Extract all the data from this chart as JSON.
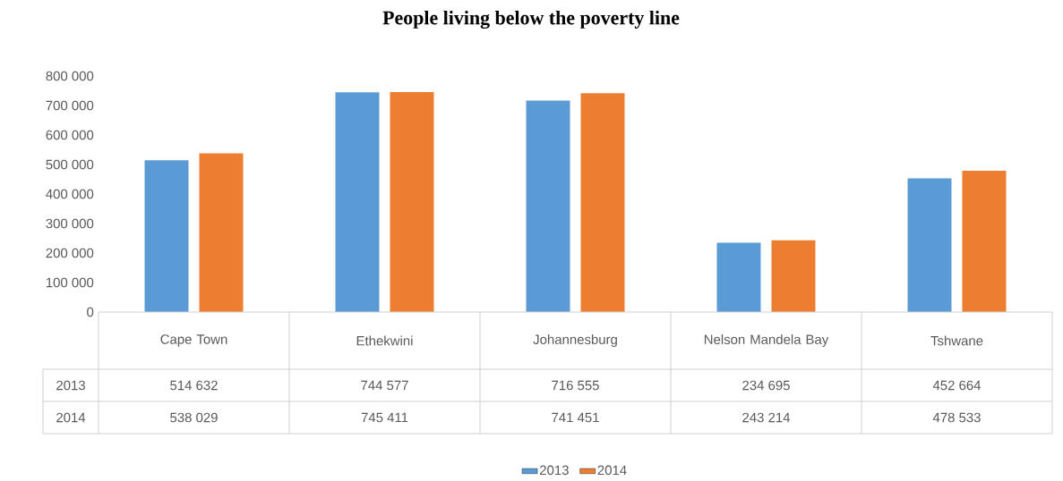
{
  "chart_data": {
    "type": "bar",
    "title": "People living below the poverty line",
    "categories": [
      "Cape Town",
      "Ethekwini",
      "Johannesburg",
      "Nelson Mandela Bay",
      "Tshwane"
    ],
    "series": [
      {
        "name": "2013",
        "color": "#5b9bd5",
        "values": [
          514632,
          744577,
          716555,
          234695,
          452664
        ],
        "value_labels": [
          "514 632",
          "744 577",
          "716 555",
          "234 695",
          "452 664"
        ]
      },
      {
        "name": "2014",
        "color": "#ed7d31",
        "values": [
          538029,
          745411,
          741451,
          243214,
          478533
        ],
        "value_labels": [
          "538 029",
          "745 411",
          "741 451",
          "243 214",
          "478 533"
        ]
      }
    ],
    "ylim": [
      0,
      800000
    ],
    "yticks": [
      {
        "value": 0,
        "label": "0"
      },
      {
        "value": 100000,
        "label": "100 000"
      },
      {
        "value": 200000,
        "label": "200 000"
      },
      {
        "value": 300000,
        "label": "300 000"
      },
      {
        "value": 400000,
        "label": "400 000"
      },
      {
        "value": 500000,
        "label": "500 000"
      },
      {
        "value": 600000,
        "label": "600 000"
      },
      {
        "value": 700000,
        "label": "700 000"
      },
      {
        "value": 800000,
        "label": "800 000"
      }
    ],
    "legend": "bottom"
  }
}
